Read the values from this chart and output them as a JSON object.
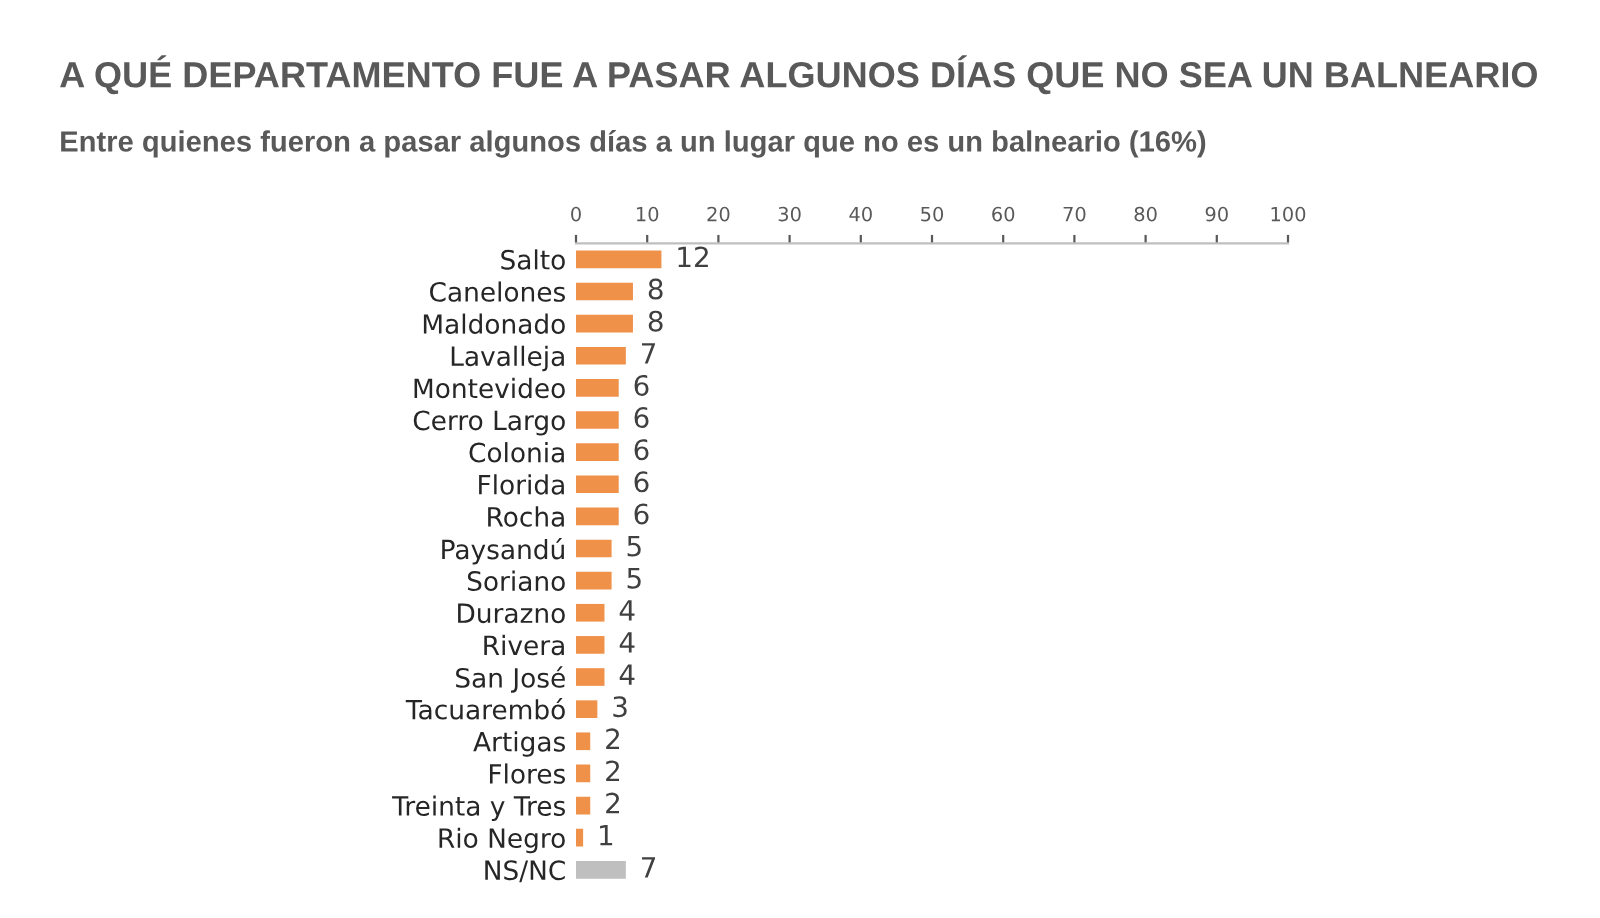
{
  "chart_data": {
    "type": "bar",
    "orientation": "horizontal",
    "title": "A QUÉ DEPARTAMENTO FUE A PASAR ALGUNOS DÍAS QUE NO SEA UN BALNEARIO",
    "subtitle": "Entre quienes fueron a pasar algunos días a un lugar que no es un balneario (16%)",
    "categories": [
      "Salto",
      "Canelones",
      "Maldonado",
      "Lavalleja",
      "Montevideo",
      "Cerro Largo",
      "Colonia",
      "Florida",
      "Rocha",
      "Paysandú",
      "Soriano",
      "Durazno",
      "Rivera",
      "San José",
      "Tacuarembó",
      "Artigas",
      "Flores",
      "Treinta y Tres",
      "Rio Negro",
      "NS/NC"
    ],
    "values": [
      12,
      8,
      8,
      7,
      6,
      6,
      6,
      6,
      6,
      5,
      5,
      4,
      4,
      4,
      3,
      2,
      2,
      2,
      1,
      7
    ],
    "colors": [
      "#f0914a",
      "#f0914a",
      "#f0914a",
      "#f0914a",
      "#f0914a",
      "#f0914a",
      "#f0914a",
      "#f0914a",
      "#f0914a",
      "#f0914a",
      "#f0914a",
      "#f0914a",
      "#f0914a",
      "#f0914a",
      "#f0914a",
      "#f0914a",
      "#f0914a",
      "#f0914a",
      "#f0914a",
      "#bfbfbf"
    ],
    "xlim": [
      0,
      100
    ],
    "xticks": [
      0,
      10,
      20,
      30,
      40,
      50,
      60,
      70,
      80,
      90,
      100
    ],
    "data_labels": true,
    "grid": false,
    "legend": false
  }
}
